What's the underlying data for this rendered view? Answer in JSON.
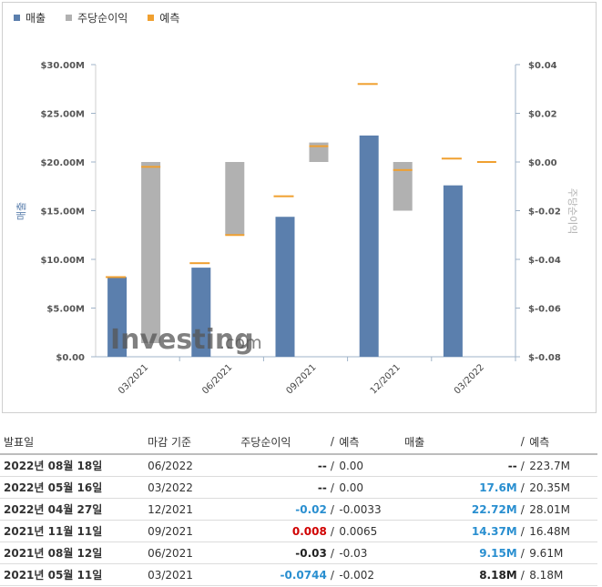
{
  "legend": [
    {
      "label": "매출",
      "color": "#5b7fad"
    },
    {
      "label": "주당순이익",
      "color": "#b1b1b1"
    },
    {
      "label": "예측",
      "color": "#f0a030"
    }
  ],
  "watermark": {
    "brand": "Investing",
    "suffix": ".com"
  },
  "chart_data": {
    "type": "bar",
    "categories": [
      "03/2021",
      "06/2021",
      "09/2021",
      "12/2021",
      "03/2022"
    ],
    "left_axis": {
      "label": "매출",
      "ticks": [
        "$0.00",
        "$5.00M",
        "$10.00M",
        "$15.00M",
        "$20.00M",
        "$25.00M",
        "$30.00M"
      ],
      "range": [
        0,
        30000000
      ]
    },
    "right_axis": {
      "label": "주당순이익",
      "ticks": [
        "$-0.08",
        "$-0.06",
        "$-0.04",
        "$-0.02",
        "$0.00",
        "$0.02",
        "$0.04"
      ],
      "range": [
        -0.08,
        0.04
      ]
    },
    "series": [
      {
        "name": "매출",
        "axis": "left",
        "values": [
          8180000,
          9150000,
          14370000,
          22720000,
          17600000
        ]
      },
      {
        "name": "주당순이익",
        "axis": "right",
        "values": [
          -0.0744,
          -0.03,
          0.008,
          -0.02,
          null
        ]
      },
      {
        "name": "예측",
        "axis": "left",
        "kind": "revenue-forecast",
        "values": [
          8180000,
          9610000,
          16480000,
          28010000,
          20350000
        ]
      },
      {
        "name": "예측",
        "axis": "right",
        "kind": "eps-forecast",
        "values": [
          -0.002,
          -0.03,
          0.0065,
          -0.0033,
          0.0
        ]
      }
    ]
  },
  "table": {
    "headers": {
      "date": "발표일",
      "period": "마감 기준",
      "eps": "주당순이익",
      "eps_sep": "/",
      "eps_forecast": "예측",
      "revenue": "매출",
      "revenue_sep": "/",
      "revenue_forecast": "예측"
    },
    "rows": [
      {
        "date": "2022년 08월 18일",
        "period": "06/2022",
        "eps": "--",
        "eps_tone": "neutral",
        "eps_forecast": "0.00",
        "revenue": "--",
        "revenue_tone": "neutral",
        "revenue_forecast": "223.7M"
      },
      {
        "date": "2022년 05월 16일",
        "period": "03/2022",
        "eps": "--",
        "eps_tone": "neutral",
        "eps_forecast": "0.00",
        "revenue": "17.6M",
        "revenue_tone": "neg",
        "revenue_forecast": "20.35M"
      },
      {
        "date": "2022년 04월 27일",
        "period": "12/2021",
        "eps": "-0.02",
        "eps_tone": "neg",
        "eps_forecast": "-0.0033",
        "revenue": "22.72M",
        "revenue_tone": "neg",
        "revenue_forecast": "28.01M"
      },
      {
        "date": "2021년 11월 11일",
        "period": "09/2021",
        "eps": "0.008",
        "eps_tone": "pos",
        "eps_forecast": "0.0065",
        "revenue": "14.37M",
        "revenue_tone": "neg",
        "revenue_forecast": "16.48M"
      },
      {
        "date": "2021년 08월 12일",
        "period": "06/2021",
        "eps": "-0.03",
        "eps_tone": "neutral",
        "eps_forecast": "-0.03",
        "revenue": "9.15M",
        "revenue_tone": "neg",
        "revenue_forecast": "9.61M"
      },
      {
        "date": "2021년 05월 11일",
        "period": "03/2021",
        "eps": "-0.0744",
        "eps_tone": "neg",
        "eps_forecast": "-0.002",
        "revenue": "8.18M",
        "revenue_tone": "neutral",
        "revenue_forecast": "8.18M"
      }
    ]
  }
}
